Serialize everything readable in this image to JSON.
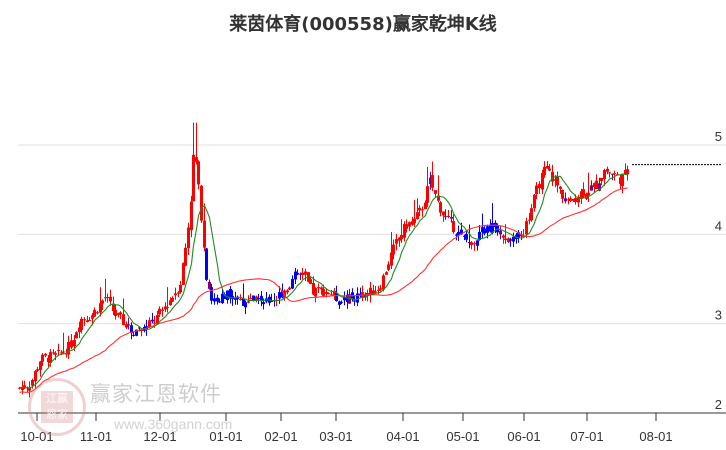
{
  "title": "莱茵体育(000558)赢家乾坤K线",
  "watermark": {
    "brand": "赢家江恩软件",
    "url": "www.360gann.com",
    "seal": "江赢恩家"
  },
  "colors": {
    "up": "#ff0000",
    "down": "#0000ff",
    "neutral": "#800080",
    "ma_short": "#228b22",
    "ma_long": "#ff3333",
    "grid": "#e0e0e0",
    "axis": "#333333"
  },
  "chart_data": {
    "type": "candlestick",
    "title": "莱茵体育(000558)赢家乾坤K线",
    "xlabel": "",
    "ylabel": "",
    "ylim": [
      2,
      5.3
    ],
    "yticks": [
      2,
      3,
      4,
      5
    ],
    "grid": true,
    "x_ticks": [
      "10-01",
      "11-01",
      "12-01",
      "01-01",
      "02-01",
      "03-01",
      "04-01",
      "05-01",
      "06-01",
      "07-01",
      "08-01"
    ],
    "legend": [],
    "last_price_line": 4.78,
    "series": [
      {
        "name": "price",
        "type": "candlestick",
        "note": "approximate daily closes read from chart",
        "monthly_ranges": [
          {
            "month": "10-01",
            "low": 2.28,
            "high": 3.08
          },
          {
            "month": "11-01",
            "low": 2.85,
            "high": 3.35
          },
          {
            "month": "12-01",
            "low": 2.95,
            "high": 5.25
          },
          {
            "month": "01-01",
            "low": 2.95,
            "high": 3.55
          },
          {
            "month": "02-01",
            "low": 3.2,
            "high": 3.62
          },
          {
            "month": "03-01",
            "low": 3.2,
            "high": 3.45
          },
          {
            "month": "04-01",
            "low": 3.4,
            "high": 4.9
          },
          {
            "month": "05-01",
            "low": 3.85,
            "high": 4.35
          },
          {
            "month": "06-01",
            "low": 3.85,
            "high": 5.0
          },
          {
            "month": "07-01",
            "low": 4.3,
            "high": 5.03
          }
        ]
      },
      {
        "name": "MA short",
        "type": "line",
        "color": "#228b22"
      },
      {
        "name": "MA long",
        "type": "line",
        "color": "#ff3333"
      }
    ]
  }
}
